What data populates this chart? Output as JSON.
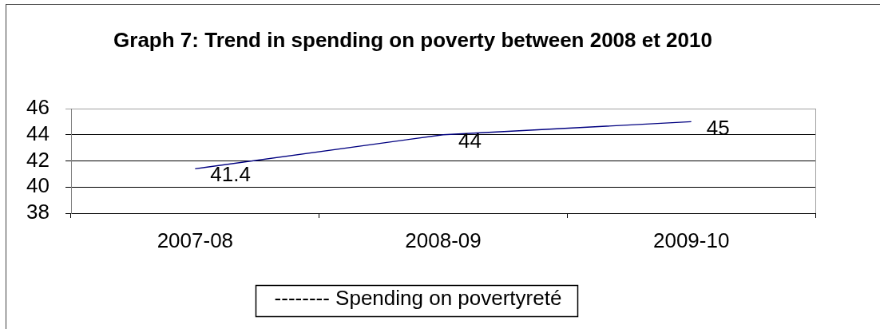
{
  "chart_data": {
    "type": "line",
    "title": "Graph 7: Trend in spending on poverty between 2008 et 2010",
    "categories": [
      "2007-08",
      "2008-09",
      "2009-10"
    ],
    "series": [
      {
        "name": "-------- Spending on povertyreté",
        "color": "#000080",
        "values": [
          41.4,
          44,
          45
        ]
      }
    ],
    "ylim": [
      38,
      46
    ],
    "yticks": [
      38,
      40,
      42,
      44,
      46
    ],
    "grid": "y",
    "legend": "bottom",
    "marker": "none",
    "data_labels": true
  }
}
